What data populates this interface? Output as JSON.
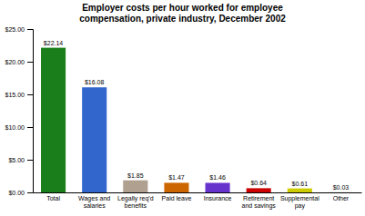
{
  "chart_data": {
    "type": "bar",
    "title": "Employer costs per hour worked for employee\ncompensation, private industry, December 2002",
    "categories": [
      "Total",
      "Wages and\nsalaries",
      "Legally req'd\nbenefits",
      "Paid leave",
      "Insurance",
      "Retirement\nand savings",
      "Supplemental\npay",
      "Other"
    ],
    "values": [
      22.14,
      16.08,
      1.85,
      1.47,
      1.46,
      0.64,
      0.61,
      0.03
    ],
    "value_labels": [
      "$22.14",
      "$16.08",
      "$1.85",
      "$1.47",
      "$1.46",
      "$0.64",
      "$0.61",
      "$0.03"
    ],
    "colors": [
      "#1a7e1a",
      "#3366cc",
      "#b0a090",
      "#cc6600",
      "#6633cc",
      "#cc0000",
      "#cccc00",
      "#cccccc"
    ],
    "ylim": [
      0,
      25
    ],
    "yticks": [
      {
        "value": 0,
        "label": "$0.00"
      },
      {
        "value": 5,
        "label": "$5.00"
      },
      {
        "value": 10,
        "label": "$10.00"
      },
      {
        "value": 15,
        "label": "$15.00"
      },
      {
        "value": 20,
        "label": "$20.00"
      },
      {
        "value": 25,
        "label": "$25.00"
      }
    ],
    "data_labels": true,
    "grid": false
  }
}
